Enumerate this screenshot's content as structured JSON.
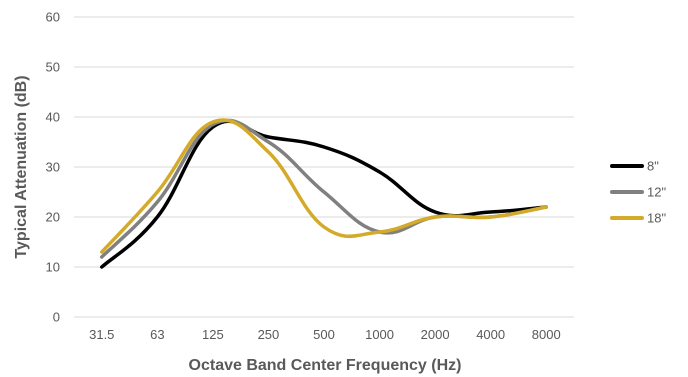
{
  "chart_data": {
    "type": "line",
    "title": "",
    "xlabel": "Octave Band Center Frequency (Hz)",
    "ylabel": "Typical Attenuation (dB)",
    "categories": [
      "31.5",
      "63",
      "125",
      "250",
      "500",
      "1000",
      "2000",
      "4000",
      "8000"
    ],
    "ylim": [
      0,
      60
    ],
    "yticks": [
      "0",
      "10",
      "20",
      "30",
      "40",
      "50",
      "60"
    ],
    "grid": true,
    "smooth": true,
    "legend_position": "right",
    "series": [
      {
        "name": "8\"",
        "color": "#000000",
        "values": [
          10,
          20,
          38,
          36,
          34,
          29,
          21,
          21,
          22
        ]
      },
      {
        "name": "12\"",
        "color": "#808080",
        "values": [
          12,
          23,
          38.5,
          35,
          25,
          17,
          20,
          20,
          22
        ]
      },
      {
        "name": "18\"",
        "color": "#d4aa2a",
        "values": [
          13,
          25,
          39,
          33,
          18,
          17,
          20,
          20,
          22
        ]
      }
    ]
  }
}
